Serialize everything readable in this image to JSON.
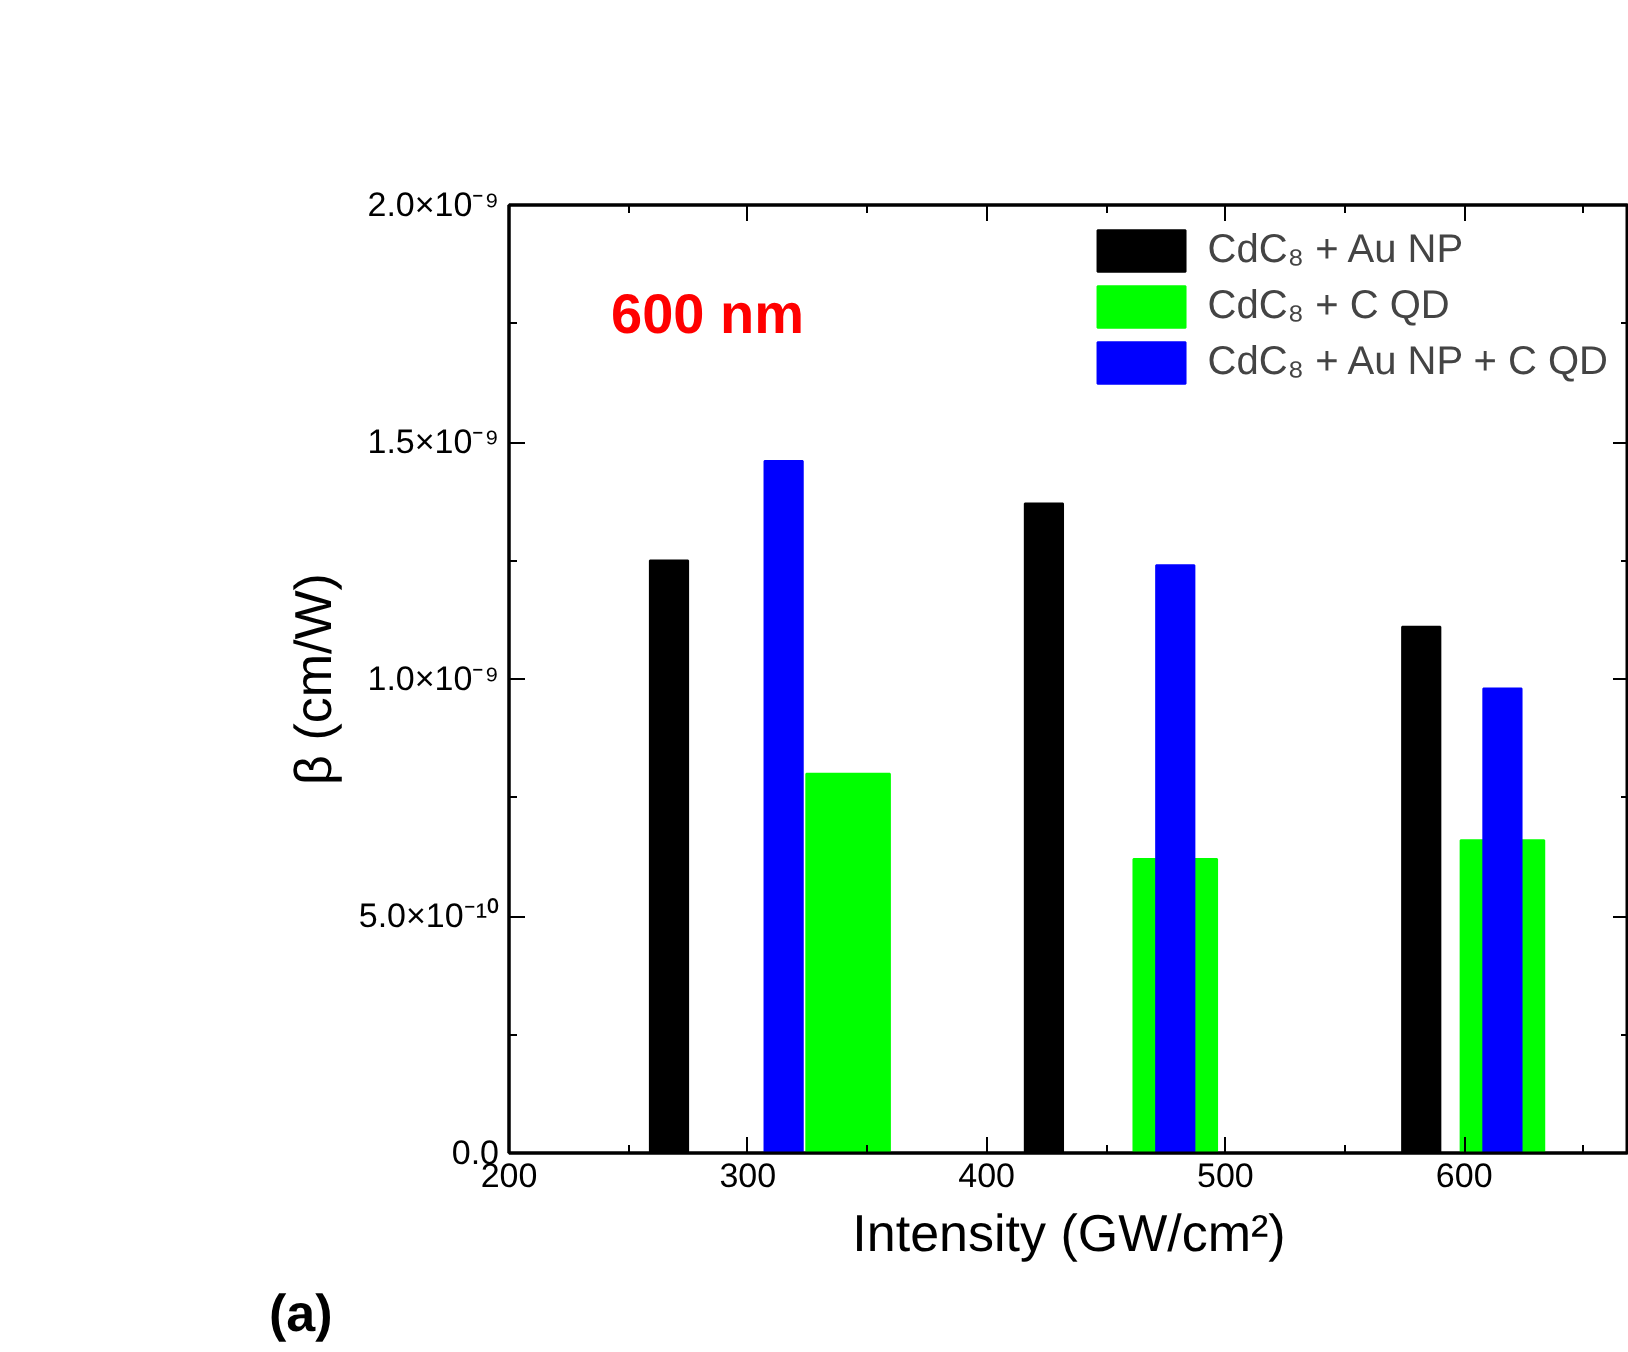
{
  "chart_data": {
    "type": "bar",
    "xlabel": "Intensity (GW/cm²)",
    "ylabel": "β (cm/W)",
    "series": [
      {
        "name": "CdC₈ + Au NP",
        "color": "#000000",
        "x": [
          267,
          424,
          582
        ],
        "values": [
          1.25e-09,
          1.37e-09,
          1.11e-09
        ]
      },
      {
        "name": "CdC₈ + C QD",
        "color": "#00ff00",
        "x": [
          342,
          479,
          616
        ],
        "values": [
          8e-10,
          6.2e-10,
          6.6e-10
        ]
      },
      {
        "name": "CdC₈ + Au NP + C QD",
        "color": "#0000ff",
        "x": [
          315,
          479,
          616
        ],
        "values": [
          1.46e-09,
          1.24e-09,
          9.8e-10
        ]
      }
    ],
    "xlim": [
      200,
      669
    ],
    "xticks": [
      200,
      {
        "value": 250,
        "label": null
      },
      300,
      {
        "value": 350,
        "label": null
      },
      400,
      {
        "value": 450,
        "label": null
      },
      500,
      {
        "value": 550,
        "label": null
      },
      600,
      {
        "value": 650,
        "label": null
      }
    ],
    "ylim": [
      0,
      2e-09
    ],
    "yticks": [
      {
        "value": 0,
        "label": "0.0"
      },
      {
        "value": 2.5e-10,
        "label": null
      },
      {
        "value": 5e-10,
        "label": "5.0×10⁻¹⁰"
      },
      {
        "value": 7.5e-10,
        "label": null
      },
      {
        "value": 1e-09,
        "label": "1.0×10⁻⁹"
      },
      {
        "value": 1.25e-09,
        "label": null
      },
      {
        "value": 1.5e-09,
        "label": "1.5×10⁻⁹"
      },
      {
        "value": 1.75e-09,
        "label": null
      },
      {
        "value": 2e-09,
        "label": "2.0×10⁻⁹"
      }
    ],
    "annotations": [
      "600 nm",
      "(a)"
    ],
    "legend": "top right",
    "grid": false
  }
}
